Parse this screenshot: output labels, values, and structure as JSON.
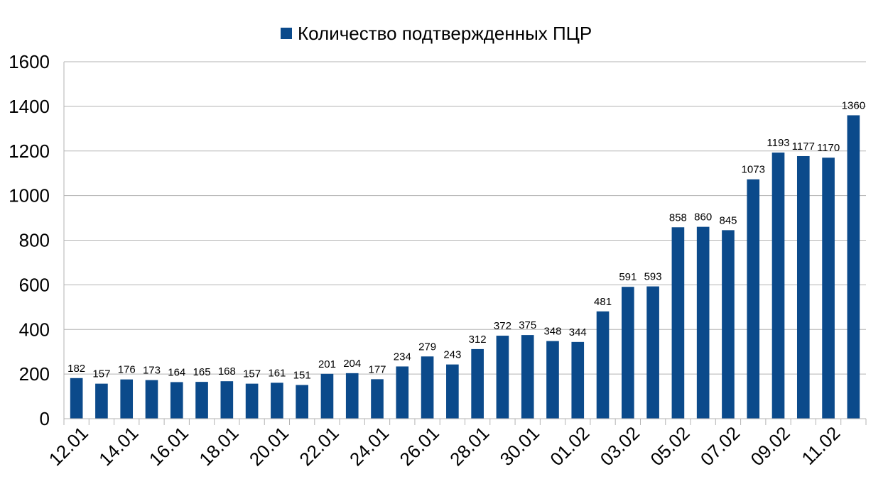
{
  "chart_data": {
    "type": "bar",
    "categories": [
      "12.01",
      "13.01",
      "14.01",
      "15.01",
      "16.01",
      "17.01",
      "18.01",
      "19.01",
      "20.01",
      "21.01",
      "22.01",
      "23.01",
      "24.01",
      "25.01",
      "26.01",
      "27.01",
      "28.01",
      "29.01",
      "30.01",
      "31.01",
      "01.02",
      "02.02",
      "03.02",
      "04.02",
      "05.02",
      "06.02",
      "07.02",
      "08.02",
      "09.02",
      "10.02",
      "11.02",
      "12.02"
    ],
    "x_tick_labels": [
      "12.01",
      "14.01",
      "16.01",
      "18.01",
      "20.01",
      "22.01",
      "24.01",
      "26.01",
      "28.01",
      "30.01",
      "01.02",
      "03.02",
      "05.02",
      "07.02",
      "09.02",
      "11.02"
    ],
    "series": [
      {
        "name": "Количество подтвержденных ПЦР",
        "color": "#0b4a8b",
        "values": [
          182,
          157,
          176,
          173,
          164,
          165,
          168,
          157,
          161,
          151,
          201,
          204,
          177,
          234,
          279,
          243,
          312,
          372,
          375,
          348,
          344,
          481,
          591,
          593,
          858,
          860,
          845,
          1073,
          1193,
          1177,
          1170,
          1360
        ]
      }
    ],
    "title": "",
    "xlabel": "",
    "ylabel": "",
    "ylim": [
      0,
      1600
    ],
    "yticks": [
      0,
      200,
      400,
      600,
      800,
      1000,
      1200,
      1400,
      1600
    ],
    "grid": true,
    "legend_position": "top-center",
    "gridColor": "#b3b3b3",
    "axisColor": "#b3b3b3"
  }
}
